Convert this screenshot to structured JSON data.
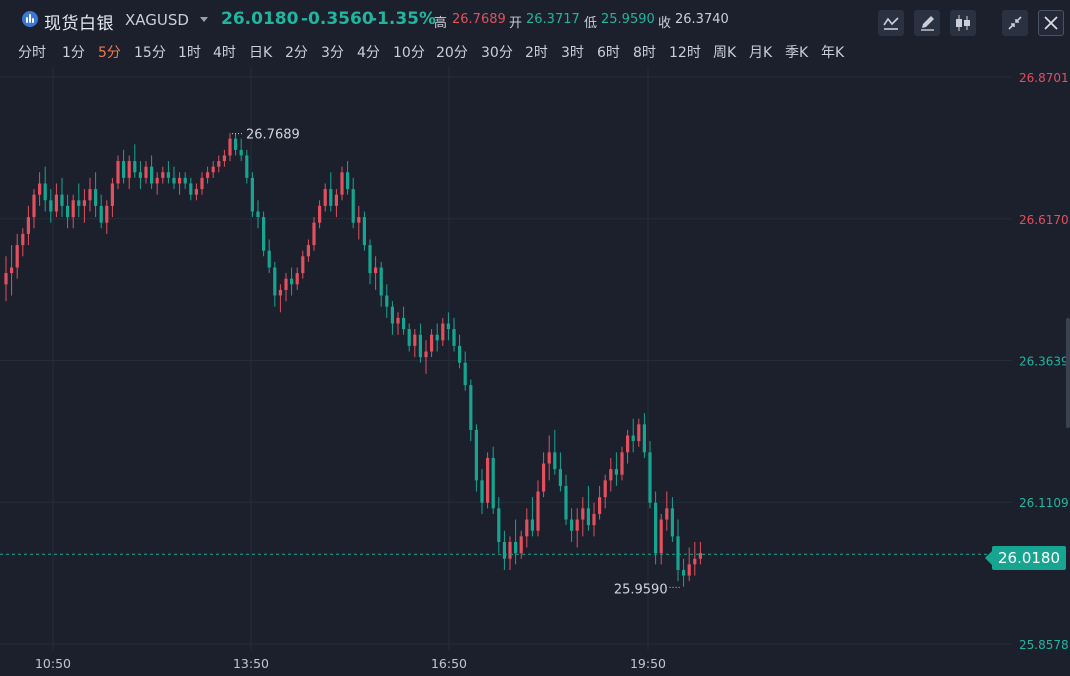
{
  "header": {
    "instrument_name": "现货白银",
    "instrument_code": "XAGUSD",
    "last": "26.0180",
    "change": "-0.3560",
    "change_pct": "-1.35%",
    "high_label": "高",
    "high": "26.7689",
    "open_label": "开",
    "open": "26.3717",
    "low_label": "低",
    "low": "25.9590",
    "close_label": "收",
    "close": "26.3740"
  },
  "toolbar": {
    "icons": [
      "indicator-icon",
      "draw-pen-icon",
      "candle-style-icon",
      "collapse-icon",
      "close-icon"
    ]
  },
  "intervals": {
    "items": [
      "分时",
      "1分",
      "5分",
      "15分",
      "1时",
      "4时",
      "日K",
      "2分",
      "3分",
      "4分",
      "10分",
      "20分",
      "30分",
      "2时",
      "3时",
      "6时",
      "8时",
      "12时",
      "周K",
      "月K",
      "季K",
      "年K"
    ],
    "active": "5分"
  },
  "chart_data": {
    "type": "candlestick",
    "y_ticks": [
      "26.8701",
      "26.6170",
      "26.3639",
      "26.1109",
      "25.8578"
    ],
    "x_ticks": [
      "10:50",
      "13:50",
      "16:50",
      "19:50"
    ],
    "last_price": "26.0180",
    "max_label": "26.7689",
    "min_label": "25.9590",
    "ylim": [
      25.8578,
      26.8701
    ],
    "grid": true,
    "colors": {
      "up": "#e2505e",
      "down": "#17a591",
      "background": "#1b202c",
      "grid": "#262c38"
    },
    "candles": [
      [
        26.5,
        26.55,
        26.47,
        26.52
      ],
      [
        26.52,
        26.57,
        26.48,
        26.53
      ],
      [
        26.53,
        26.59,
        26.51,
        26.57
      ],
      [
        26.57,
        26.6,
        26.55,
        26.59
      ],
      [
        26.59,
        26.64,
        26.57,
        26.62
      ],
      [
        26.62,
        26.67,
        26.6,
        26.66
      ],
      [
        26.66,
        26.7,
        26.64,
        26.68
      ],
      [
        26.68,
        26.71,
        26.63,
        26.65
      ],
      [
        26.65,
        26.67,
        26.61,
        26.63
      ],
      [
        26.63,
        26.68,
        26.62,
        26.66
      ],
      [
        26.66,
        26.69,
        26.62,
        26.64
      ],
      [
        26.64,
        26.66,
        26.6,
        26.62
      ],
      [
        26.62,
        26.66,
        26.6,
        26.65
      ],
      [
        26.65,
        26.68,
        26.62,
        26.64
      ],
      [
        26.64,
        26.67,
        26.61,
        26.65
      ],
      [
        26.65,
        26.69,
        26.63,
        26.67
      ],
      [
        26.67,
        26.7,
        26.62,
        26.64
      ],
      [
        26.64,
        26.66,
        26.6,
        26.61
      ],
      [
        26.61,
        26.65,
        26.59,
        26.64
      ],
      [
        26.64,
        26.69,
        26.62,
        26.68
      ],
      [
        26.68,
        26.73,
        26.67,
        26.72
      ],
      [
        26.72,
        26.74,
        26.68,
        26.69
      ],
      [
        26.69,
        26.73,
        26.67,
        26.72
      ],
      [
        26.72,
        26.75,
        26.69,
        26.7
      ],
      [
        26.7,
        26.72,
        26.67,
        26.69
      ],
      [
        26.69,
        26.72,
        26.68,
        26.71
      ],
      [
        26.71,
        26.73,
        26.67,
        26.68
      ],
      [
        26.68,
        26.7,
        26.66,
        26.69
      ],
      [
        26.69,
        26.71,
        26.68,
        26.7
      ],
      [
        26.7,
        26.72,
        26.68,
        26.69
      ],
      [
        26.69,
        26.71,
        26.67,
        26.68
      ],
      [
        26.68,
        26.7,
        26.66,
        26.69
      ],
      [
        26.69,
        26.7,
        26.67,
        26.68
      ],
      [
        26.68,
        26.69,
        26.65,
        26.66
      ],
      [
        26.66,
        26.68,
        26.65,
        26.67
      ],
      [
        26.67,
        26.7,
        26.66,
        26.69
      ],
      [
        26.69,
        26.71,
        26.68,
        26.7
      ],
      [
        26.7,
        26.72,
        26.69,
        26.71
      ],
      [
        26.71,
        26.73,
        26.7,
        26.72
      ],
      [
        26.72,
        26.74,
        26.71,
        26.73
      ],
      [
        26.73,
        26.77,
        26.72,
        26.76
      ],
      [
        26.76,
        26.77,
        26.73,
        26.74
      ],
      [
        26.74,
        26.76,
        26.72,
        26.73
      ],
      [
        26.73,
        26.74,
        26.68,
        26.69
      ],
      [
        26.69,
        26.7,
        26.62,
        26.63
      ],
      [
        26.63,
        26.65,
        26.6,
        26.62
      ],
      [
        26.62,
        26.63,
        26.55,
        26.56
      ],
      [
        26.56,
        26.58,
        26.52,
        26.53
      ],
      [
        26.53,
        26.54,
        26.46,
        26.48
      ],
      [
        26.48,
        26.5,
        26.45,
        26.49
      ],
      [
        26.49,
        26.52,
        26.47,
        26.51
      ],
      [
        26.51,
        26.53,
        26.48,
        26.5
      ],
      [
        26.5,
        26.53,
        26.49,
        26.52
      ],
      [
        26.52,
        26.56,
        26.51,
        26.55
      ],
      [
        26.55,
        26.58,
        26.54,
        26.57
      ],
      [
        26.57,
        26.62,
        26.56,
        26.61
      ],
      [
        26.61,
        26.65,
        26.6,
        26.64
      ],
      [
        26.64,
        26.68,
        26.63,
        26.67
      ],
      [
        26.67,
        26.7,
        26.63,
        26.64
      ],
      [
        26.64,
        26.67,
        26.62,
        26.66
      ],
      [
        26.66,
        26.71,
        26.65,
        26.7
      ],
      [
        26.7,
        26.72,
        26.66,
        26.67
      ],
      [
        26.67,
        26.69,
        26.6,
        26.61
      ],
      [
        26.61,
        26.64,
        26.58,
        26.62
      ],
      [
        26.62,
        26.63,
        26.56,
        26.57
      ],
      [
        26.57,
        26.58,
        26.5,
        26.52
      ],
      [
        26.52,
        26.55,
        26.49,
        26.53
      ],
      [
        26.53,
        26.54,
        26.46,
        26.48
      ],
      [
        26.48,
        26.5,
        26.44,
        26.46
      ],
      [
        26.46,
        26.47,
        26.41,
        26.43
      ],
      [
        26.43,
        26.45,
        26.41,
        26.44
      ],
      [
        26.44,
        26.46,
        26.41,
        26.42
      ],
      [
        26.42,
        26.43,
        26.38,
        26.39
      ],
      [
        26.39,
        26.42,
        26.37,
        26.41
      ],
      [
        26.41,
        26.43,
        26.36,
        26.37
      ],
      [
        26.37,
        26.4,
        26.34,
        26.38
      ],
      [
        26.38,
        26.42,
        26.37,
        26.41
      ],
      [
        26.41,
        26.43,
        26.38,
        26.4
      ],
      [
        26.4,
        26.44,
        26.39,
        26.43
      ],
      [
        26.43,
        26.45,
        26.4,
        26.42
      ],
      [
        26.42,
        26.44,
        26.38,
        26.39
      ],
      [
        26.39,
        26.41,
        26.35,
        26.36
      ],
      [
        26.36,
        26.38,
        26.31,
        26.32
      ],
      [
        26.32,
        26.33,
        26.22,
        26.24
      ],
      [
        26.24,
        26.25,
        26.13,
        26.15
      ],
      [
        26.15,
        26.17,
        26.09,
        26.11
      ],
      [
        26.11,
        26.2,
        26.1,
        26.19
      ],
      [
        26.19,
        26.21,
        26.09,
        26.1
      ],
      [
        26.1,
        26.12,
        26.02,
        26.04
      ],
      [
        26.04,
        26.06,
        25.99,
        26.01
      ],
      [
        26.01,
        26.05,
        25.99,
        26.04
      ],
      [
        26.04,
        26.08,
        26.0,
        26.02
      ],
      [
        26.02,
        26.06,
        26.01,
        26.05
      ],
      [
        26.05,
        26.1,
        26.03,
        26.08
      ],
      [
        26.08,
        26.12,
        26.05,
        26.06
      ],
      [
        26.06,
        26.15,
        26.05,
        26.13
      ],
      [
        26.13,
        26.2,
        26.12,
        26.18
      ],
      [
        26.18,
        26.23,
        26.15,
        26.2
      ],
      [
        26.2,
        26.24,
        26.16,
        26.17
      ],
      [
        26.17,
        26.2,
        26.13,
        26.14
      ],
      [
        26.14,
        26.16,
        26.07,
        26.08
      ],
      [
        26.08,
        26.1,
        26.04,
        26.06
      ],
      [
        26.06,
        26.1,
        26.03,
        26.08
      ],
      [
        26.08,
        26.12,
        26.05,
        26.1
      ],
      [
        26.1,
        26.14,
        26.06,
        26.07
      ],
      [
        26.07,
        26.11,
        26.05,
        26.09
      ],
      [
        26.09,
        26.14,
        26.08,
        26.12
      ],
      [
        26.12,
        26.16,
        26.1,
        26.15
      ],
      [
        26.15,
        26.19,
        26.13,
        26.17
      ],
      [
        26.17,
        26.2,
        26.14,
        26.16
      ],
      [
        26.16,
        26.21,
        26.15,
        26.2
      ],
      [
        26.2,
        26.24,
        26.18,
        26.23
      ],
      [
        26.23,
        26.26,
        26.2,
        26.22
      ],
      [
        26.22,
        26.26,
        26.21,
        26.25
      ],
      [
        26.25,
        26.27,
        26.19,
        26.2
      ],
      [
        26.2,
        26.22,
        26.1,
        26.11
      ],
      [
        26.11,
        26.13,
        26.0,
        26.02
      ],
      [
        26.02,
        26.09,
        26.0,
        26.08
      ],
      [
        26.08,
        26.13,
        26.06,
        26.1
      ],
      [
        26.1,
        26.12,
        26.04,
        26.05
      ],
      [
        26.05,
        26.08,
        25.97,
        25.99
      ],
      [
        25.99,
        26.01,
        25.96,
        25.98
      ],
      [
        25.98,
        26.03,
        25.97,
        26.0
      ],
      [
        26.0,
        26.04,
        25.98,
        26.01
      ],
      [
        26.01,
        26.04,
        26.0,
        26.02
      ]
    ]
  }
}
